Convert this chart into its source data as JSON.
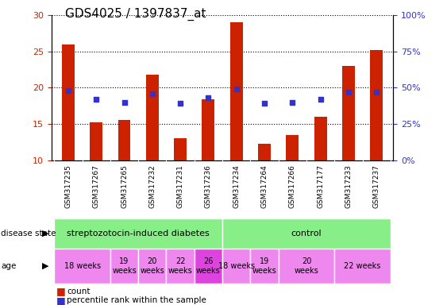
{
  "title": "GDS4025 / 1397837_at",
  "samples": [
    "GSM317235",
    "GSM317267",
    "GSM317265",
    "GSM317232",
    "GSM317231",
    "GSM317236",
    "GSM317234",
    "GSM317264",
    "GSM317266",
    "GSM317177",
    "GSM317233",
    "GSM317237"
  ],
  "counts": [
    26.0,
    15.2,
    15.6,
    21.8,
    13.0,
    18.4,
    29.0,
    12.3,
    13.5,
    16.0,
    23.0,
    25.2
  ],
  "percentiles": [
    48,
    42,
    40,
    46,
    39,
    43,
    49,
    39,
    40,
    42,
    47,
    47
  ],
  "bar_bottom": 10,
  "ylim_left": [
    10,
    30
  ],
  "ylim_right": [
    0,
    100
  ],
  "yticks_left": [
    10,
    15,
    20,
    25,
    30
  ],
  "yticks_right": [
    0,
    25,
    50,
    75,
    100
  ],
  "bar_color": "#cc2200",
  "dot_color": "#3333cc",
  "bg_color": "#ffffff",
  "title_fontsize": 11,
  "tick_fontsize": 8,
  "sample_label_fontsize": 6.5,
  "age_groups": [
    {
      "label": "18 weeks",
      "xstart": -0.5,
      "xend": 1.5,
      "color": "#ee88ee"
    },
    {
      "label": "19\nweeks",
      "xstart": 1.5,
      "xend": 2.5,
      "color": "#ee88ee"
    },
    {
      "label": "20\nweeks",
      "xstart": 2.5,
      "xend": 3.5,
      "color": "#ee88ee"
    },
    {
      "label": "22\nweeks",
      "xstart": 3.5,
      "xend": 4.5,
      "color": "#ee88ee"
    },
    {
      "label": "26\nweeks",
      "xstart": 4.5,
      "xend": 5.5,
      "color": "#dd44dd"
    },
    {
      "label": "18 weeks",
      "xstart": 5.5,
      "xend": 6.5,
      "color": "#ee88ee"
    },
    {
      "label": "19\nweeks",
      "xstart": 6.5,
      "xend": 7.5,
      "color": "#ee88ee"
    },
    {
      "label": "20\nweeks",
      "xstart": 7.5,
      "xend": 9.5,
      "color": "#ee88ee"
    },
    {
      "label": "22 weeks",
      "xstart": 9.5,
      "xend": 11.5,
      "color": "#ee88ee"
    }
  ]
}
